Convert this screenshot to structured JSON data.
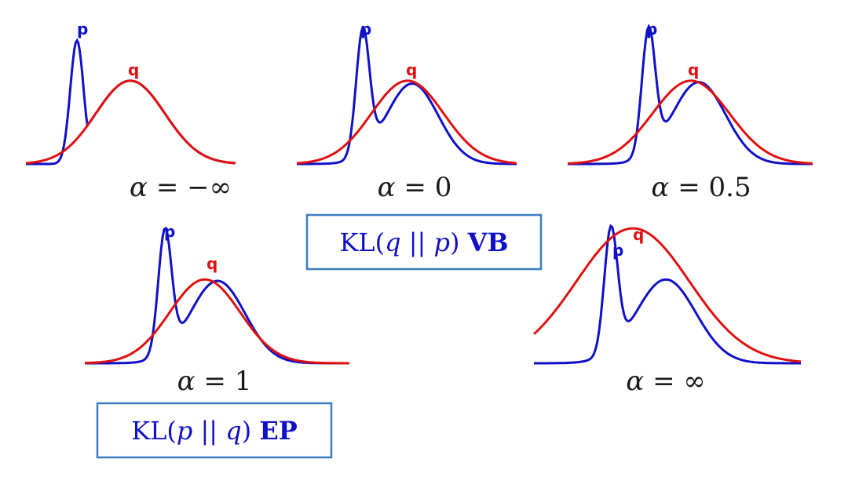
{
  "colors": {
    "p": "#1010c8",
    "q": "#e01010",
    "box_border": "#3b7cc0",
    "text": "#1a1a1a"
  },
  "p_label": "p",
  "q_label": "q",
  "alpha_symbol": "α",
  "panels": [
    {
      "id": "neg-inf",
      "alpha_value": "−∞",
      "p_peak_level": 0.86,
      "q_peak_level": 0.58
    },
    {
      "id": "zero",
      "alpha_value": "0",
      "p_peak_level": 0.86,
      "q_peak_level": 0.58
    },
    {
      "id": "half",
      "alpha_value": "0.5",
      "p_peak_level": 0.86,
      "q_peak_level": 0.58
    },
    {
      "id": "one",
      "alpha_value": "1",
      "p_peak_level": 0.86,
      "q_peak_level": 0.59
    },
    {
      "id": "pos-inf",
      "alpha_value": "∞",
      "p_peak_level": 0.86,
      "q_peak_level": 0.95
    }
  ],
  "kl_boxes": [
    {
      "id": "vb",
      "kl": "KL",
      "arg1": "q",
      "sep": "||",
      "arg2": "p",
      "tag": "VB"
    },
    {
      "id": "ep",
      "kl": "KL",
      "arg1": "p",
      "sep": "||",
      "arg2": "q",
      "tag": "EP"
    }
  ]
}
